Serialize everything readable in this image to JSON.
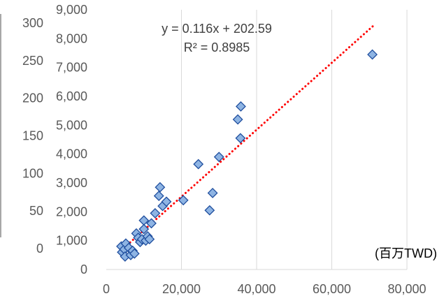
{
  "chart_data": [
    {
      "type": "scatter",
      "title": "",
      "xlabel": "(百万TWD)",
      "ylabel": "",
      "xlim": [
        0,
        80000
      ],
      "ylim": [
        0,
        9000
      ],
      "x_ticks": [
        "0",
        "20,000",
        "40,000",
        "60,000",
        "80,000"
      ],
      "y_ticks": [
        "0",
        "1,000",
        "2,000",
        "3,000",
        "4,000",
        "5,000",
        "6,000",
        "7,000",
        "8,000",
        "9,000"
      ],
      "grid": "vertical",
      "legend": "none",
      "marker": "diamond",
      "marker_color": "#8EB4E3",
      "marker_edge_color": "#1F4E9E",
      "trendline_color": "#FF0000",
      "gridline_color": "#D9D9D9",
      "axis_text_color": "#595959",
      "annotations": [
        "y = 0.116x + 202.59",
        "R² = 0.8985"
      ],
      "trendline": {
        "slope": 0.116,
        "intercept": 202.59,
        "x_range": [
          4000,
          71000
        ],
        "style": "dotted"
      },
      "points": [
        {
          "x": 4000,
          "y": 800
        },
        {
          "x": 4200,
          "y": 600
        },
        {
          "x": 4800,
          "y": 700
        },
        {
          "x": 5000,
          "y": 450
        },
        {
          "x": 5200,
          "y": 900
        },
        {
          "x": 6000,
          "y": 750
        },
        {
          "x": 6500,
          "y": 500
        },
        {
          "x": 7000,
          "y": 650
        },
        {
          "x": 7500,
          "y": 550
        },
        {
          "x": 8000,
          "y": 1250
        },
        {
          "x": 8500,
          "y": 1100
        },
        {
          "x": 9000,
          "y": 950
        },
        {
          "x": 9500,
          "y": 1050
        },
        {
          "x": 10000,
          "y": 1700
        },
        {
          "x": 10000,
          "y": 1400
        },
        {
          "x": 10500,
          "y": 1000
        },
        {
          "x": 11000,
          "y": 1150
        },
        {
          "x": 11500,
          "y": 1050
        },
        {
          "x": 12000,
          "y": 1600
        },
        {
          "x": 13000,
          "y": 1950
        },
        {
          "x": 14000,
          "y": 2550
        },
        {
          "x": 14300,
          "y": 2850
        },
        {
          "x": 15000,
          "y": 2200
        },
        {
          "x": 16000,
          "y": 2350
        },
        {
          "x": 20500,
          "y": 2400
        },
        {
          "x": 24500,
          "y": 3650
        },
        {
          "x": 27500,
          "y": 2050
        },
        {
          "x": 28300,
          "y": 2650
        },
        {
          "x": 30000,
          "y": 3900
        },
        {
          "x": 35000,
          "y": 5200
        },
        {
          "x": 35700,
          "y": 4550
        },
        {
          "x": 35800,
          "y": 5650
        },
        {
          "x": 70800,
          "y": 7450
        }
      ]
    },
    {
      "type": "scatter",
      "title": "",
      "axis": "y-secondary-left",
      "ylim": [
        0,
        300
      ],
      "y_ticks": [
        "0",
        "50",
        "100",
        "150",
        "200",
        "250",
        "300"
      ],
      "series": []
    }
  ]
}
